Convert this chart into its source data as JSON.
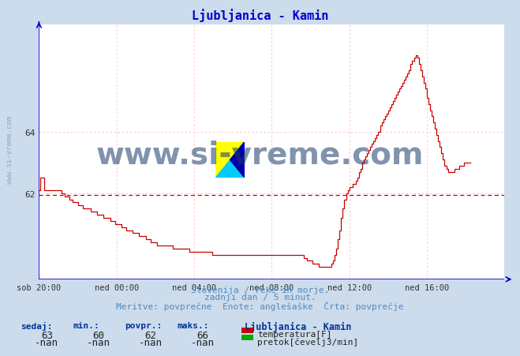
{
  "title": "Ljubljanica - Kamin",
  "title_color": "#0000cc",
  "bg_color": "#ccdcec",
  "plot_bg_color": "#ffffff",
  "xlabel_ticks": [
    "sob 20:00",
    "ned 00:00",
    "ned 04:00",
    "ned 08:00",
    "ned 12:00",
    "ned 16:00"
  ],
  "yticks": [
    62,
    64
  ],
  "ylim_min": 59.2,
  "ylim_max": 67.5,
  "xlim_min": 0,
  "xlim_max": 288,
  "grid_color": "#ffbbbb",
  "axis_color": "#0000cc",
  "avg_line_value": 61.95,
  "avg_line_color": "#cc0000",
  "line_color": "#cc0000",
  "watermark_text": "www.si-vreme.com",
  "watermark_color": "#1a3a6a",
  "watermark_fontsize": 28,
  "sub_text1": "Slovenija / reke in morje.",
  "sub_text2": "zadnji dan / 5 minut.",
  "sub_text3": "Meritve: povprečne  Enote: anglešaške  Črta: povprečje",
  "sub_color": "#5588bb",
  "footer_labels": [
    "sedaj:",
    "min.:",
    "povpr.:",
    "maks.:"
  ],
  "footer_vals_temp": [
    "63",
    "60",
    "62",
    "66"
  ],
  "footer_vals_flow": [
    "-nan",
    "-nan",
    "-nan",
    "-nan"
  ],
  "legend_title": "Ljubljanica - Kamin",
  "legend1_label": "temperatura[F]",
  "legend1_color": "#cc0000",
  "legend2_label": "pretok[čevelj3/min]",
  "legend2_color": "#00aa00",
  "xtick_positions": [
    0,
    48,
    96,
    144,
    192,
    240
  ],
  "temp_data": [
    62.1,
    62.5,
    62.5,
    62.1,
    62.1,
    62.1,
    62.1,
    62.1,
    62.1,
    62.1,
    62.1,
    62.1,
    62.1,
    62.1,
    62.0,
    62.0,
    61.9,
    61.9,
    61.9,
    61.8,
    61.8,
    61.7,
    61.7,
    61.7,
    61.6,
    61.6,
    61.6,
    61.5,
    61.5,
    61.5,
    61.5,
    61.5,
    61.4,
    61.4,
    61.4,
    61.4,
    61.3,
    61.3,
    61.3,
    61.3,
    61.2,
    61.2,
    61.2,
    61.2,
    61.1,
    61.1,
    61.1,
    61.0,
    61.0,
    61.0,
    61.0,
    60.9,
    60.9,
    60.9,
    60.8,
    60.8,
    60.8,
    60.8,
    60.7,
    60.7,
    60.7,
    60.7,
    60.6,
    60.6,
    60.6,
    60.6,
    60.5,
    60.5,
    60.5,
    60.4,
    60.4,
    60.4,
    60.4,
    60.3,
    60.3,
    60.3,
    60.3,
    60.3,
    60.3,
    60.3,
    60.3,
    60.3,
    60.3,
    60.2,
    60.2,
    60.2,
    60.2,
    60.2,
    60.2,
    60.2,
    60.2,
    60.2,
    60.2,
    60.1,
    60.1,
    60.1,
    60.1,
    60.1,
    60.1,
    60.1,
    60.1,
    60.1,
    60.1,
    60.1,
    60.1,
    60.1,
    60.1,
    60.0,
    60.0,
    60.0,
    60.0,
    60.0,
    60.0,
    60.0,
    60.0,
    60.0,
    60.0,
    60.0,
    60.0,
    60.0,
    60.0,
    60.0,
    60.0,
    60.0,
    60.0,
    60.0,
    60.0,
    60.0,
    60.0,
    60.0,
    60.0,
    60.0,
    60.0,
    60.0,
    60.0,
    60.0,
    60.0,
    60.0,
    60.0,
    60.0,
    60.0,
    60.0,
    60.0,
    60.0,
    60.0,
    60.0,
    60.0,
    60.0,
    60.0,
    60.0,
    60.0,
    60.0,
    60.0,
    60.0,
    60.0,
    60.0,
    60.0,
    60.0,
    60.0,
    60.0,
    60.0,
    60.0,
    60.0,
    60.0,
    59.9,
    59.9,
    59.8,
    59.8,
    59.8,
    59.7,
    59.7,
    59.7,
    59.7,
    59.6,
    59.6,
    59.6,
    59.6,
    59.6,
    59.6,
    59.6,
    59.6,
    59.7,
    59.8,
    60.0,
    60.2,
    60.5,
    60.8,
    61.2,
    61.5,
    61.8,
    62.0,
    62.1,
    62.2,
    62.2,
    62.3,
    62.3,
    62.4,
    62.5,
    62.7,
    62.8,
    63.0,
    63.1,
    63.2,
    63.3,
    63.4,
    63.5,
    63.6,
    63.7,
    63.8,
    63.9,
    64.0,
    64.2,
    64.3,
    64.4,
    64.5,
    64.6,
    64.7,
    64.8,
    64.9,
    65.0,
    65.1,
    65.2,
    65.3,
    65.4,
    65.5,
    65.6,
    65.7,
    65.8,
    65.9,
    66.0,
    66.2,
    66.3,
    66.4,
    66.5,
    66.4,
    66.2,
    66.0,
    65.8,
    65.6,
    65.4,
    65.1,
    64.9,
    64.7,
    64.5,
    64.3,
    64.1,
    63.9,
    63.7,
    63.5,
    63.3,
    63.1,
    62.9,
    62.8,
    62.7,
    62.7,
    62.7,
    62.7,
    62.8,
    62.8,
    62.8,
    62.9,
    62.9,
    62.9,
    63.0,
    63.0,
    63.0,
    63.0,
    63.0
  ]
}
